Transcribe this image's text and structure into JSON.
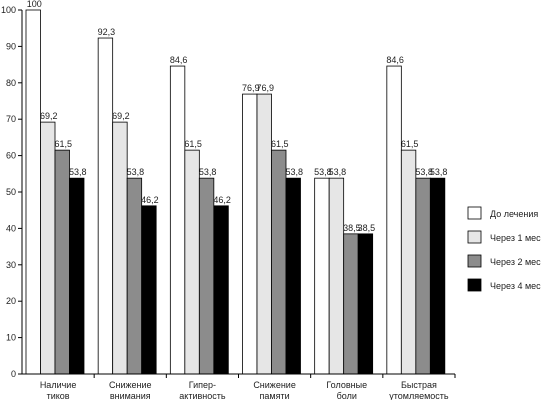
{
  "chart_data": {
    "type": "bar",
    "categories": [
      [
        "Наличие",
        "тиков"
      ],
      [
        "Снижение",
        "внимания"
      ],
      [
        "Гипер-",
        "активность"
      ],
      [
        "Снижение",
        "памяти"
      ],
      [
        "Головные",
        "боли"
      ],
      [
        "Быстрая",
        "утомляемость"
      ]
    ],
    "series": [
      {
        "name": "До лечения",
        "color": "#ffffff",
        "values": [
          100,
          92.3,
          84.6,
          76.9,
          53.8,
          84.6
        ],
        "labels": [
          "100",
          "92,3",
          "84,6",
          "76,9",
          "53,8",
          "84,6"
        ]
      },
      {
        "name": "Через 1 мес",
        "color": "#e6e6e6",
        "values": [
          69.2,
          69.2,
          61.5,
          76.9,
          53.8,
          61.5
        ],
        "labels": [
          "69,2",
          "69,2",
          "61,5",
          "76,9",
          "53,8",
          "61,5"
        ]
      },
      {
        "name": "Через 2 мес",
        "color": "#8c8c8c",
        "values": [
          61.5,
          53.8,
          53.8,
          61.5,
          38.5,
          53.8
        ],
        "labels": [
          "61,5",
          "53,8",
          "53,8",
          "61,5",
          "38,5",
          "53,8"
        ]
      },
      {
        "name": "Через 4 мес",
        "color": "#000000",
        "values": [
          53.8,
          46.2,
          46.2,
          53.8,
          38.5,
          53.8
        ],
        "labels": [
          "53,8",
          "46,2",
          "46,2",
          "53,8",
          "38,5",
          "53,8"
        ]
      }
    ],
    "yticks": [
      "0",
      "10",
      "20",
      "30",
      "40",
      "50",
      "60",
      "70",
      "80",
      "90",
      "100"
    ],
    "ylim": [
      0,
      100
    ],
    "grid": false,
    "legend_position": "right"
  }
}
